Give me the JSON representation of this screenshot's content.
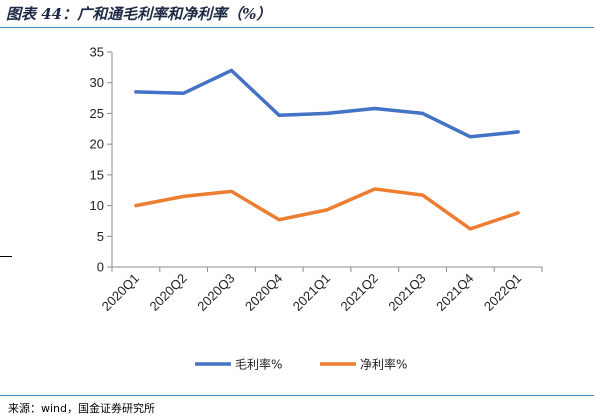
{
  "figure": {
    "title": "图表 44：广和通毛利率和净利率（%）",
    "source": "来源：wind，国金证券研究所"
  },
  "chart_data": {
    "type": "line",
    "title": "",
    "xlabel": "",
    "ylabel": "",
    "categories": [
      "2020Q1",
      "2020Q2",
      "2020Q3",
      "2020Q4",
      "2021Q1",
      "2021Q2",
      "2021Q3",
      "2021Q4",
      "2022Q1"
    ],
    "ylim": [
      0,
      35
    ],
    "yticks": [
      0,
      5,
      10,
      15,
      20,
      25,
      30,
      35
    ],
    "grid": false,
    "legend_position": "bottom",
    "series": [
      {
        "name": "毛利率%",
        "color": "#4472c4",
        "values": [
          28.5,
          28.3,
          32.0,
          24.7,
          25.0,
          25.8,
          25.0,
          21.2,
          22.0
        ]
      },
      {
        "name": "净利率%",
        "color": "#ed7d31",
        "values": [
          10.0,
          11.5,
          12.3,
          7.7,
          9.3,
          12.7,
          11.7,
          6.2,
          8.8
        ]
      }
    ]
  }
}
